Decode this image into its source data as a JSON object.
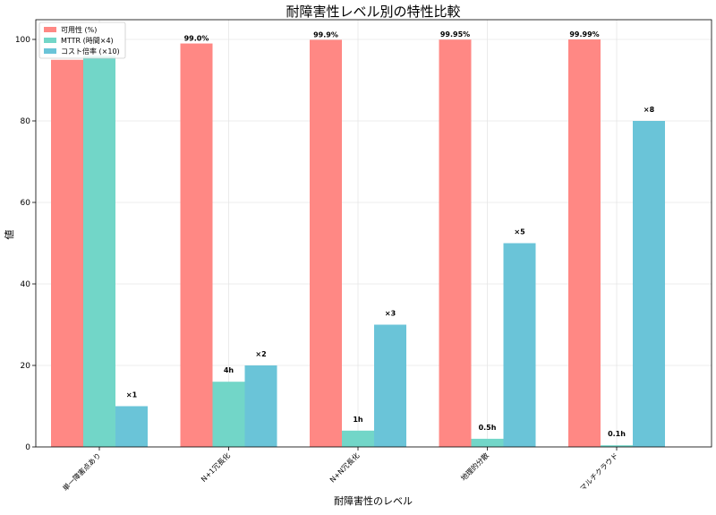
{
  "chart_data": {
    "type": "bar",
    "title": "耐障害性レベル別の特性比較",
    "xlabel": "耐障害性のレベル",
    "ylabel": "値",
    "categories": [
      "単一障害点あり",
      "N+1冗長化",
      "N+N冗長化",
      "地理的分散",
      "マルチクラウド"
    ],
    "ylim": [
      0,
      105
    ],
    "yticks": [
      0,
      20,
      40,
      60,
      80,
      100
    ],
    "grid": true,
    "legend_position": "top-left",
    "series": [
      {
        "name": "可用性 (%)",
        "color": "#ff8884",
        "values": [
          95,
          99.0,
          99.9,
          99.95,
          99.99
        ],
        "labels": [
          "",
          "99.0%",
          "99.9%",
          "99.95%",
          "99.99%"
        ]
      },
      {
        "name": "MTTR (時間×4)",
        "color": "#72d6c8",
        "values": [
          96,
          16,
          4,
          2,
          0.4
        ],
        "labels": [
          "",
          "4h",
          "1h",
          "0.5h",
          "0.1h"
        ]
      },
      {
        "name": "コスト倍率 (×10)",
        "color": "#6ac4d8",
        "values": [
          10,
          20,
          30,
          50,
          80
        ],
        "labels": [
          "×1",
          "×2",
          "×3",
          "×5",
          "×8"
        ]
      }
    ]
  }
}
